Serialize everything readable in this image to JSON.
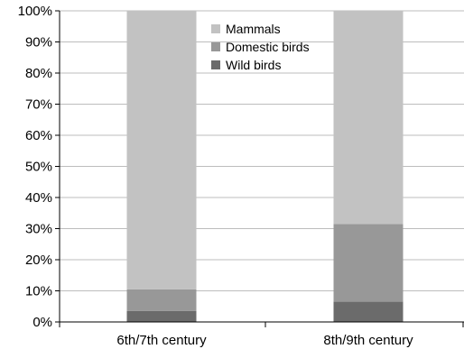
{
  "chart_data": {
    "type": "bar",
    "stacked": true,
    "categories": [
      "6th/7th century",
      "8th/9th century"
    ],
    "series": [
      {
        "name": "Wild birds",
        "values": [
          3.5,
          6.5
        ],
        "color": "#6b6b6b"
      },
      {
        "name": "Domestic birds",
        "values": [
          7.0,
          25.0
        ],
        "color": "#989898"
      },
      {
        "name": "Mammals",
        "values": [
          89.5,
          68.5
        ],
        "color": "#c2c2c2"
      }
    ],
    "legend_order": [
      "Mammals",
      "Domestic birds",
      "Wild birds"
    ],
    "legend_position": "top-center",
    "title": "",
    "xlabel": "",
    "ylabel": "",
    "ylim": [
      0,
      100
    ],
    "yticks": [
      "0%",
      "10%",
      "20%",
      "30%",
      "40%",
      "50%",
      "60%",
      "70%",
      "80%",
      "90%",
      "100%"
    ],
    "grid": true,
    "colors": {
      "gridline": "#bdbdbd",
      "axis": "#000000"
    }
  }
}
